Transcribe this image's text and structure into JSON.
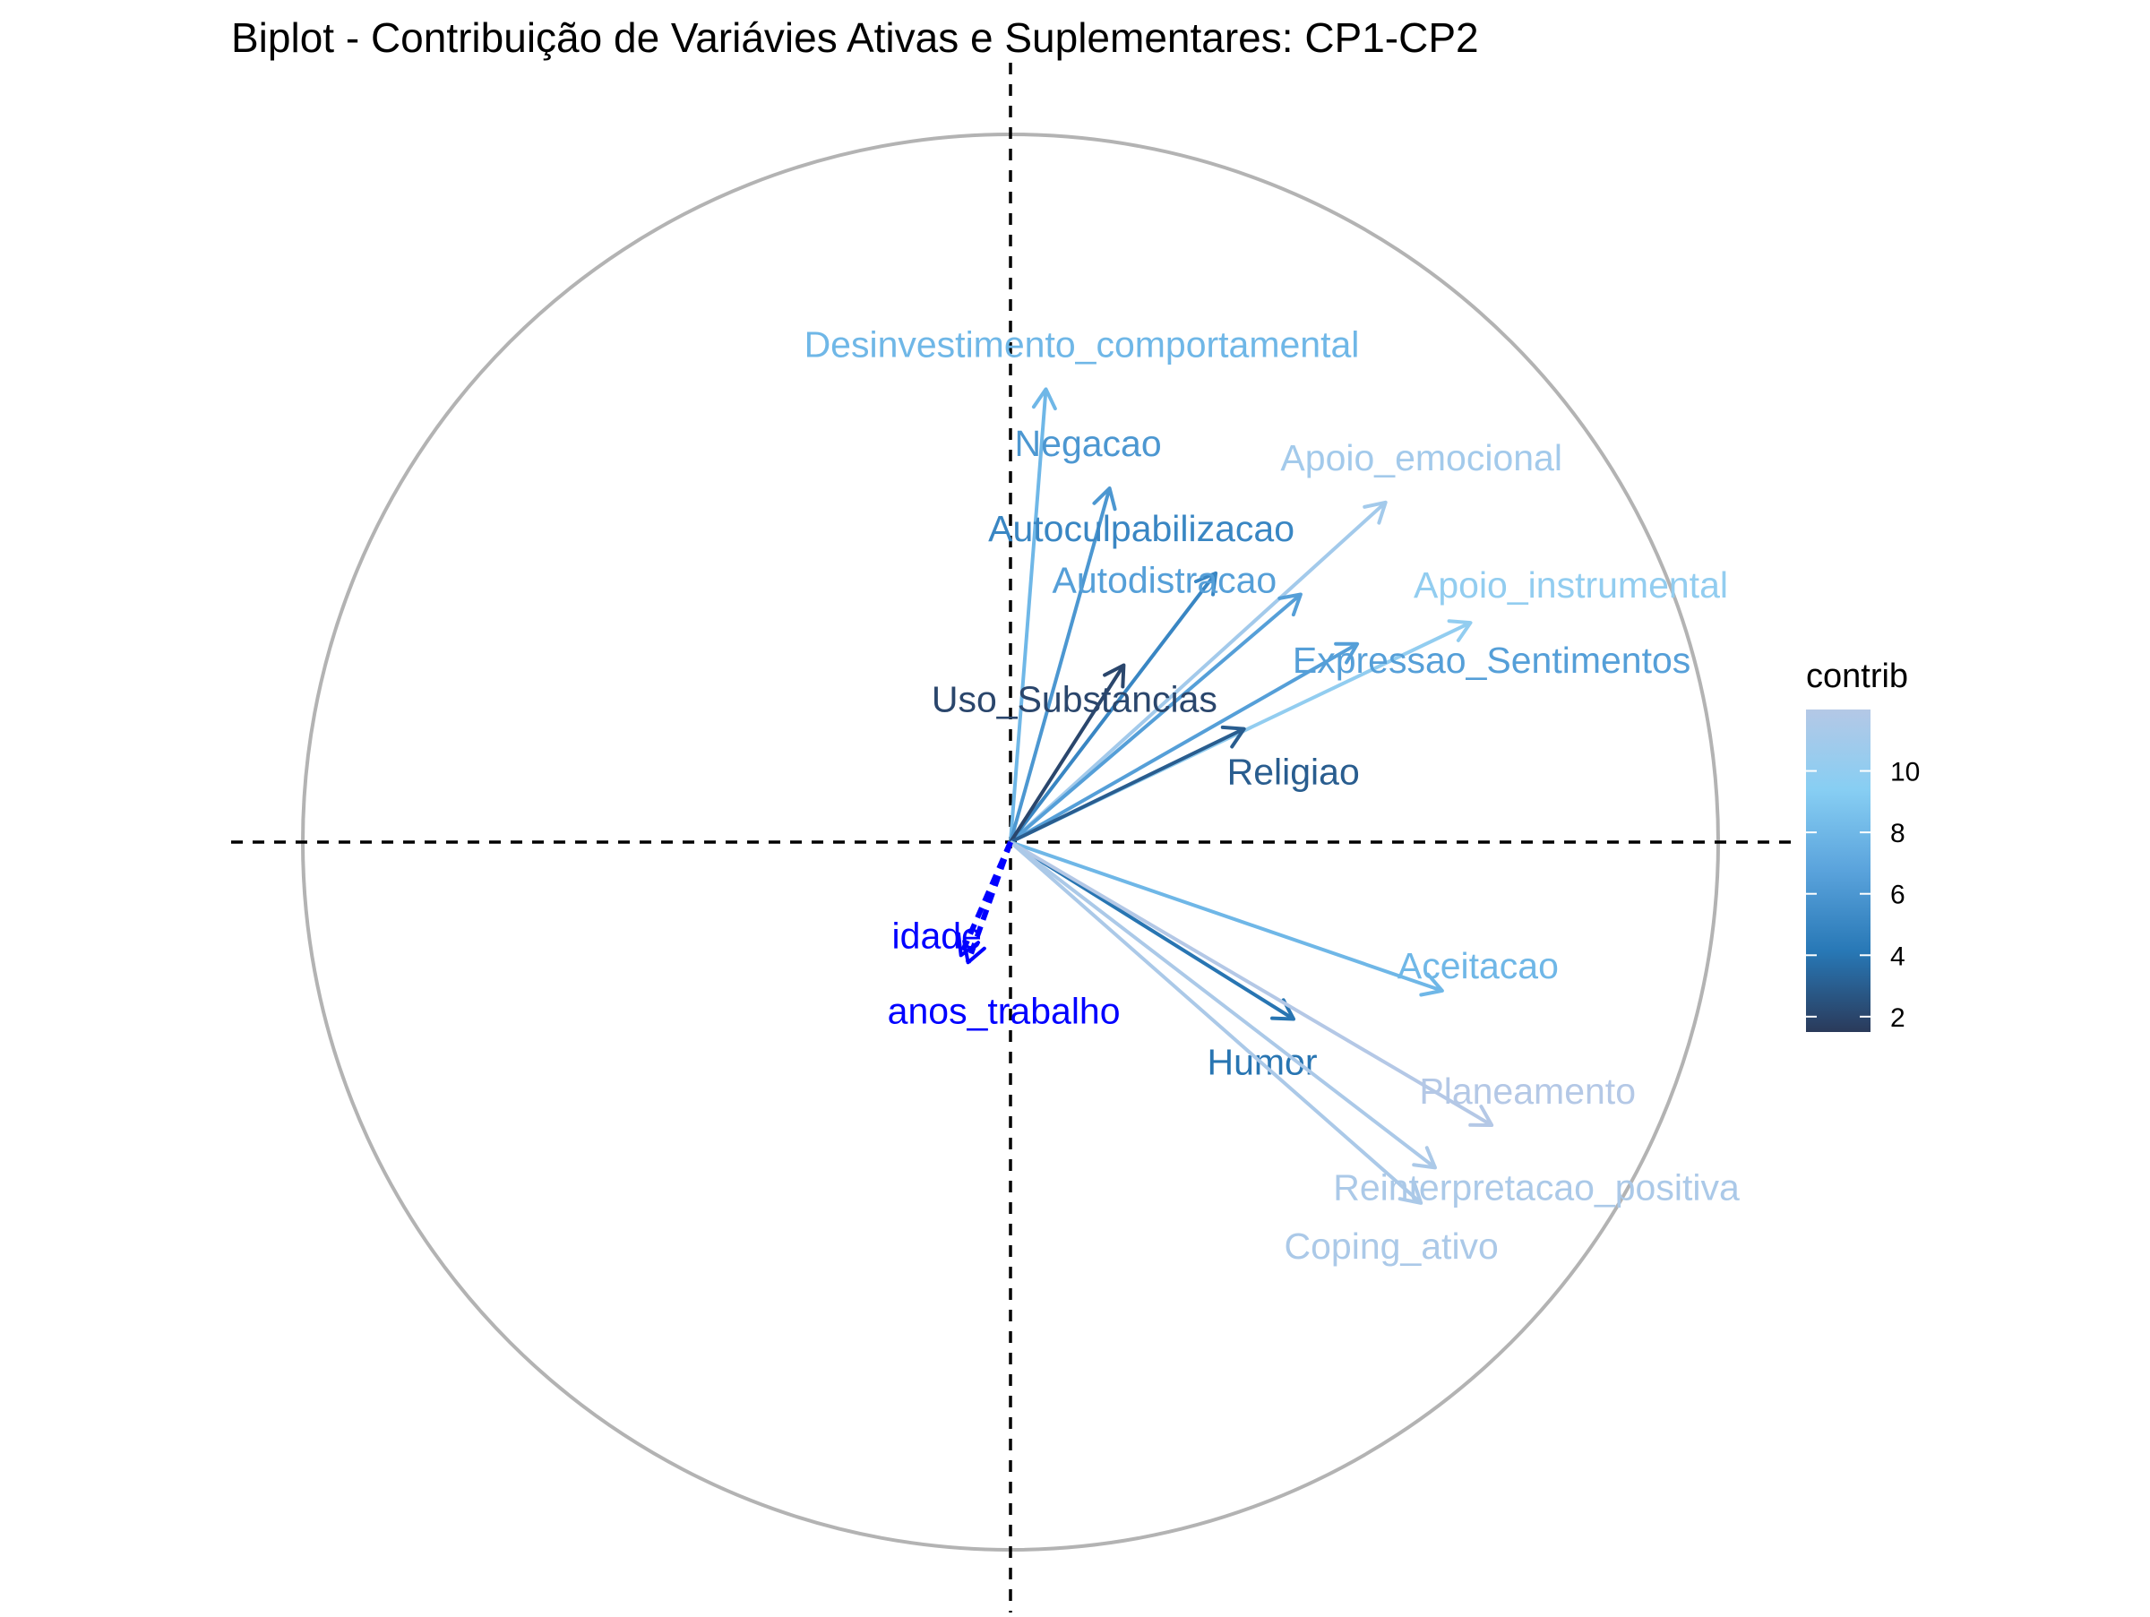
{
  "chart_data": {
    "type": "scatter",
    "title": "Biplot - Contribuição de Variávies Ativas e Suplementares: CP1-CP2",
    "xlim": [
      -1,
      1
    ],
    "ylim": [
      -1,
      1
    ],
    "grid": false,
    "legend_position": "right",
    "legend": {
      "title": "contrib",
      "ticks": [
        2,
        4,
        6,
        8,
        10
      ],
      "range": [
        1.5,
        12
      ],
      "gradient_colors": [
        "#2a3a5a",
        "#2878b6",
        "#5aa3dc",
        "#87cef3",
        "#b4c8e6"
      ]
    },
    "active_variables": [
      {
        "name": "Desinvestimento_comportamental",
        "x": 0.05,
        "y": 0.64,
        "contrib": 8.0
      },
      {
        "name": "Negacao",
        "x": 0.14,
        "y": 0.5,
        "contrib": 6.0
      },
      {
        "name": "Apoio_emocional",
        "x": 0.53,
        "y": 0.48,
        "contrib": 11.0
      },
      {
        "name": "Autoculpabilizacao",
        "x": 0.29,
        "y": 0.38,
        "contrib": 5.0
      },
      {
        "name": "Autodistracao",
        "x": 0.41,
        "y": 0.35,
        "contrib": 6.5
      },
      {
        "name": "Apoio_instrumental",
        "x": 0.65,
        "y": 0.31,
        "contrib": 10.0
      },
      {
        "name": "Expressao_Sentimentos",
        "x": 0.49,
        "y": 0.28,
        "contrib": 6.5
      },
      {
        "name": "Uso_Substancias",
        "x": 0.16,
        "y": 0.25,
        "contrib": 2.0
      },
      {
        "name": "Religiao",
        "x": 0.33,
        "y": 0.16,
        "contrib": 3.0
      },
      {
        "name": "Aceitacao",
        "x": 0.61,
        "y": -0.21,
        "contrib": 8.0
      },
      {
        "name": "Humor",
        "x": 0.4,
        "y": -0.25,
        "contrib": 4.0
      },
      {
        "name": "Planeamento",
        "x": 0.68,
        "y": -0.4,
        "contrib": 12.0
      },
      {
        "name": "Reinterpretacao_positiva",
        "x": 0.6,
        "y": -0.46,
        "contrib": 11.5
      },
      {
        "name": "Coping_ativo",
        "x": 0.58,
        "y": -0.51,
        "contrib": 11.5
      }
    ],
    "supplementary_variables": [
      {
        "name": "idade",
        "x": -0.07,
        "y": -0.16,
        "color": "#0000ff"
      },
      {
        "name": "anos_trabalho",
        "x": -0.06,
        "y": -0.17,
        "color": "#0000ff"
      }
    ],
    "colors": {
      "circle": "#b3b3b3",
      "axis_lines": "#000000",
      "supplementary": "#0000ff"
    }
  }
}
